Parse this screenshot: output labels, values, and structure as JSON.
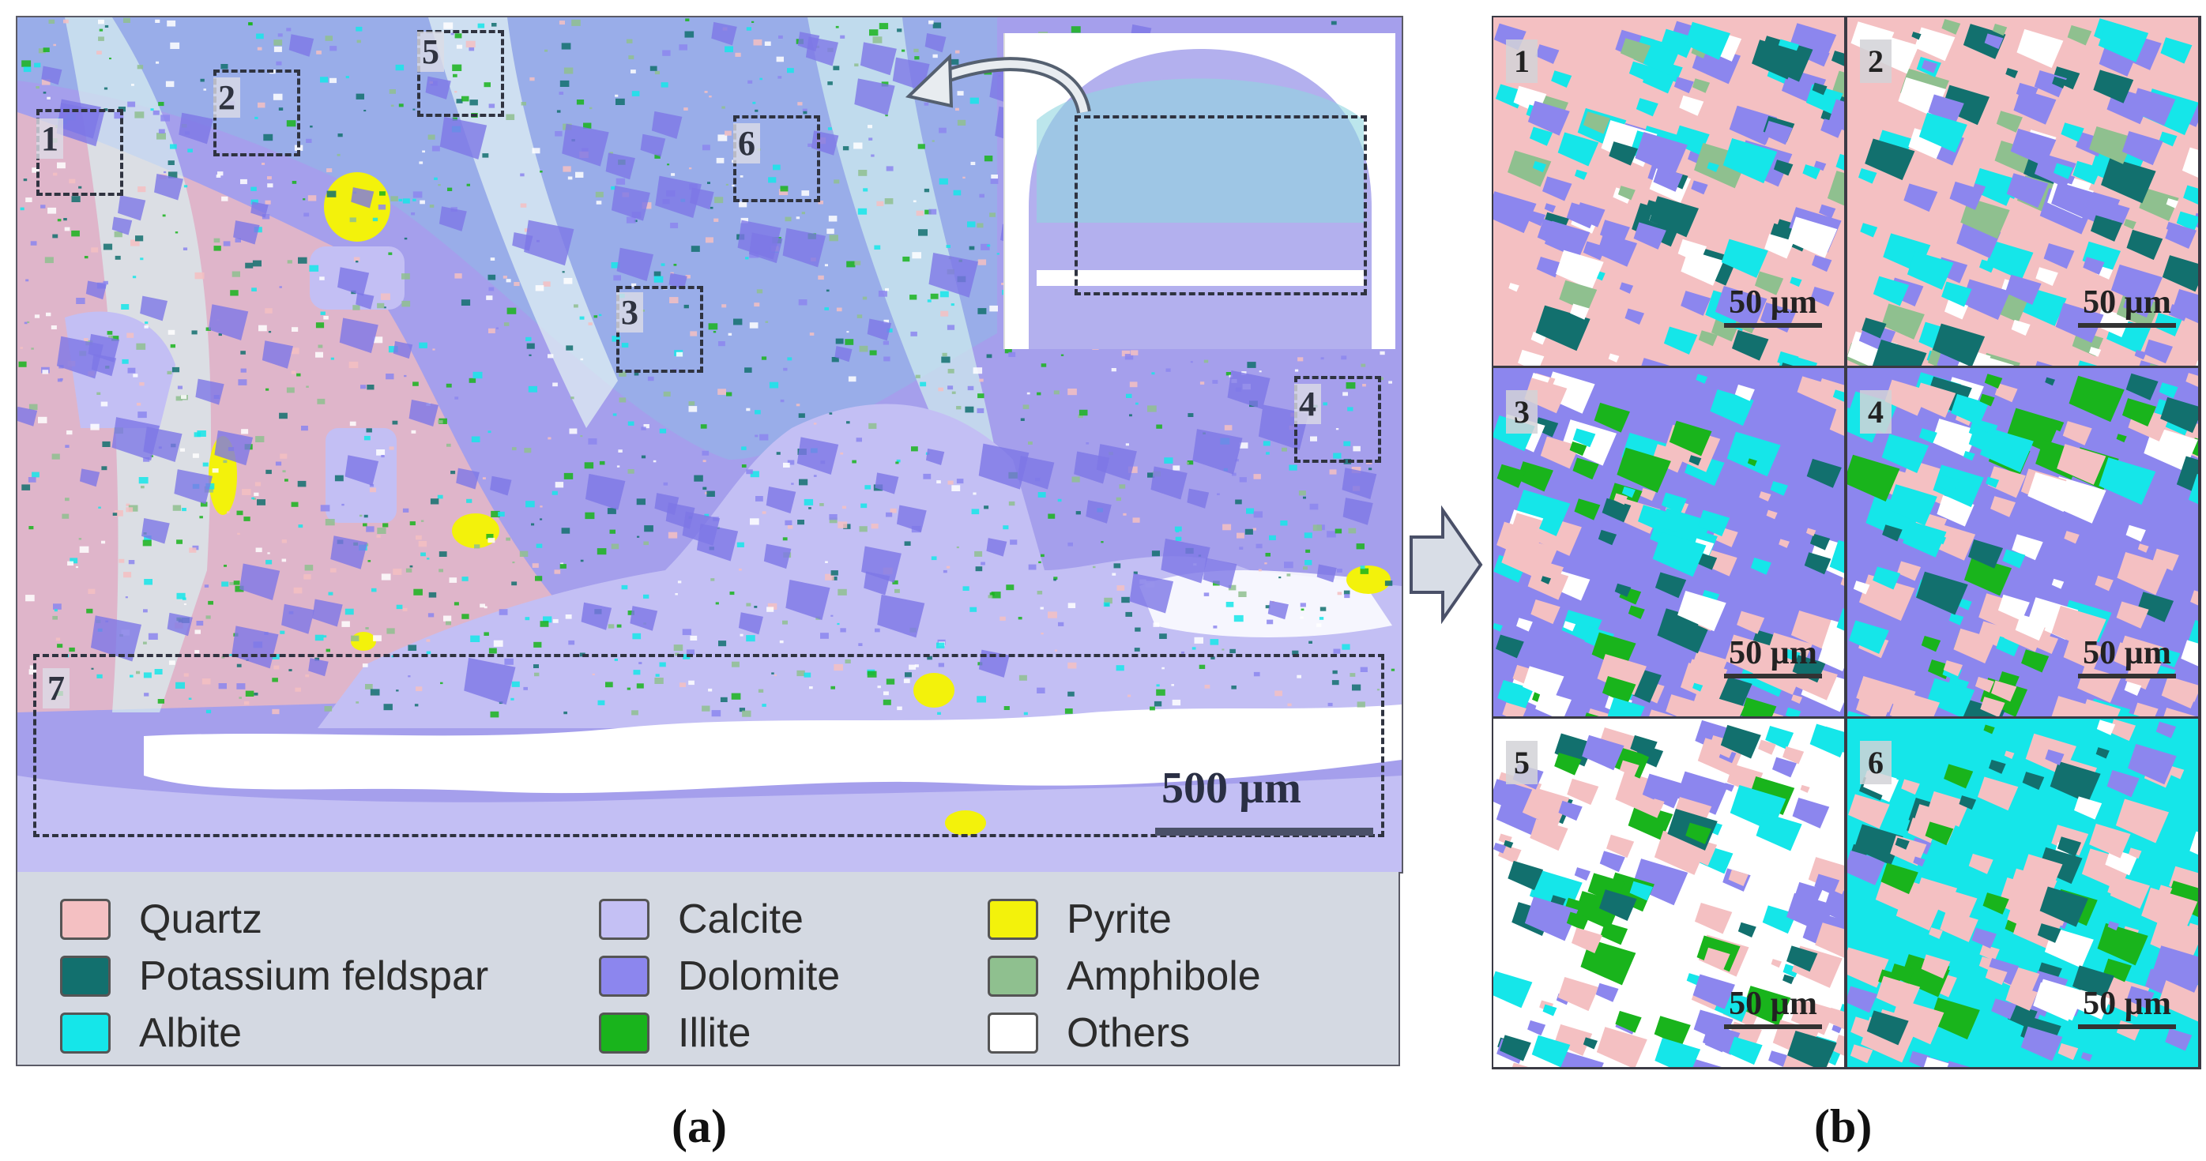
{
  "panel_a": {
    "caption": "(a)",
    "scale_label": "500 µm",
    "regions": [
      "1",
      "2",
      "3",
      "4",
      "5",
      "6",
      "7"
    ]
  },
  "legend": {
    "items": [
      {
        "label": "Quartz",
        "color": "#f4c0c2"
      },
      {
        "label": "Potassium  feldspar",
        "color": "#12706e"
      },
      {
        "label": "Albite",
        "color": "#15e6e9"
      },
      {
        "label": "Calcite",
        "color": "#c4c0f4"
      },
      {
        "label": "Dolomite",
        "color": "#8c86ee"
      },
      {
        "label": "Illite",
        "color": "#19b41c"
      },
      {
        "label": "Pyrite",
        "color": "#f3f20b"
      },
      {
        "label": "Amphibole",
        "color": "#8fc08f"
      },
      {
        "label": "Others",
        "color": "#ffffff"
      }
    ]
  },
  "panel_b": {
    "caption": "(b)",
    "tiles": [
      {
        "number": "1",
        "scale_label": "50 µm"
      },
      {
        "number": "2",
        "scale_label": "50 µm"
      },
      {
        "number": "3",
        "scale_label": "50 µm"
      },
      {
        "number": "4",
        "scale_label": "50 µm"
      },
      {
        "number": "5",
        "scale_label": "50 µm"
      },
      {
        "number": "6",
        "scale_label": "50 µm"
      }
    ]
  }
}
